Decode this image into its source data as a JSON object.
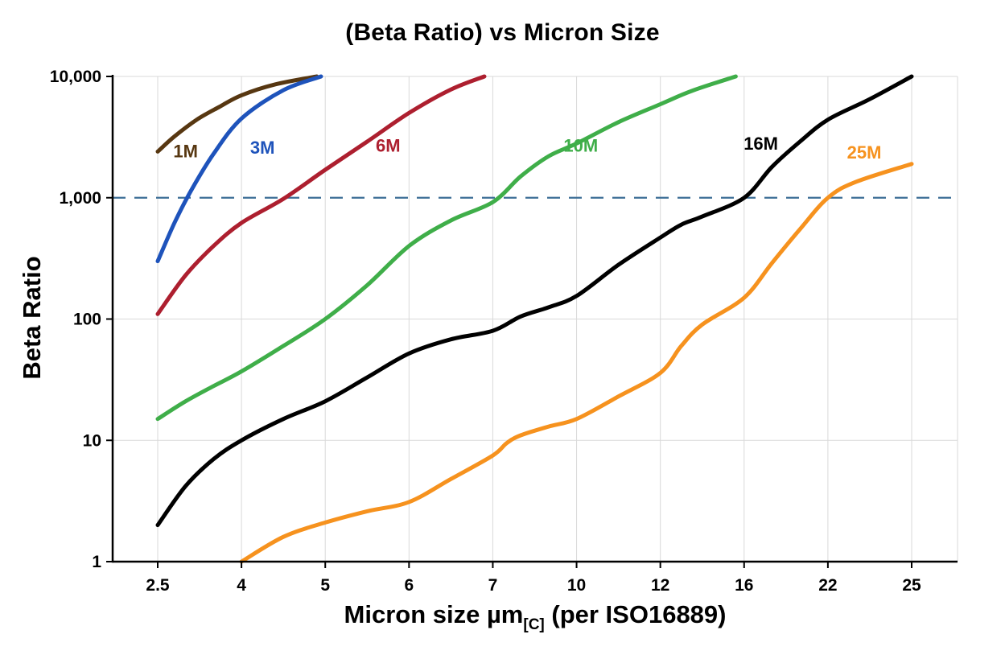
{
  "page": {
    "background": "#ffffff"
  },
  "chart_data": {
    "type": "line",
    "title": "(Beta Ratio) vs Micron Size",
    "ylabel": "Beta Ratio",
    "xlabel_prefix": "Micron size µm",
    "xlabel_subscript": "[C]",
    "xlabel_suffix": " (per ISO16889)",
    "x_scale": "categorical",
    "y_scale": "log",
    "ylim": [
      1,
      10000
    ],
    "categories": [
      2.5,
      4,
      5,
      6,
      7,
      10,
      12,
      16,
      22,
      25
    ],
    "x_tick_labels": [
      "2.5",
      "4",
      "5",
      "6",
      "7",
      "10",
      "12",
      "16",
      "22",
      "25"
    ],
    "y_ticks": [
      1,
      10,
      100,
      1000,
      10000
    ],
    "y_tick_labels": [
      "1",
      "10",
      "100",
      "1,000",
      "10,000"
    ],
    "grid": true,
    "grid_color": "#d9d9d9",
    "axis_color": "#000000",
    "reference_line": {
      "y": 1000,
      "style": "dashed",
      "color": "#3c6e96"
    },
    "legend_position": "inline-labels",
    "series": [
      {
        "name": "1M",
        "color": "#573711",
        "label_pos": [
          3.0,
          2150
        ],
        "points": [
          [
            2.5,
            2400
          ],
          [
            2.8,
            3200
          ],
          [
            3.2,
            4400
          ],
          [
            3.6,
            5600
          ],
          [
            4.0,
            7000
          ],
          [
            4.4,
            8600
          ],
          [
            4.9,
            10000
          ]
        ]
      },
      {
        "name": "3M",
        "color": "#1e53bb",
        "label_pos": [
          4.25,
          2300
        ],
        "points": [
          [
            2.5,
            300
          ],
          [
            2.8,
            620
          ],
          [
            3.1,
            1150
          ],
          [
            3.5,
            2300
          ],
          [
            4.0,
            4500
          ],
          [
            4.5,
            7700
          ],
          [
            4.95,
            10000
          ]
        ]
      },
      {
        "name": "6M",
        "color": "#ad1f2f",
        "label_pos": [
          5.75,
          2400
        ],
        "points": [
          [
            2.5,
            110
          ],
          [
            3.0,
            230
          ],
          [
            3.5,
            400
          ],
          [
            4.0,
            620
          ],
          [
            4.5,
            980
          ],
          [
            5.0,
            1700
          ],
          [
            5.5,
            2900
          ],
          [
            6.0,
            5000
          ],
          [
            6.5,
            7800
          ],
          [
            6.9,
            10000
          ]
        ]
      },
      {
        "name": "10M",
        "color": "#3fae49",
        "label_pos": [
          10.1,
          2400
        ],
        "points": [
          [
            2.5,
            15
          ],
          [
            3.0,
            21
          ],
          [
            3.5,
            28
          ],
          [
            4.0,
            37
          ],
          [
            4.5,
            60
          ],
          [
            5.0,
            100
          ],
          [
            5.5,
            190
          ],
          [
            6.0,
            400
          ],
          [
            6.5,
            650
          ],
          [
            7.0,
            920
          ],
          [
            8.0,
            1500
          ],
          [
            9.0,
            2200
          ],
          [
            10.0,
            2800
          ],
          [
            11.0,
            4200
          ],
          [
            12.0,
            5900
          ],
          [
            13.5,
            7600
          ],
          [
            15.6,
            10000
          ]
        ]
      },
      {
        "name": "16M",
        "color": "#000000",
        "label_pos": [
          17.2,
          2500
        ],
        "points": [
          [
            2.5,
            2
          ],
          [
            3.0,
            4.2
          ],
          [
            3.5,
            7
          ],
          [
            4.0,
            10
          ],
          [
            4.5,
            15
          ],
          [
            5.0,
            21
          ],
          [
            5.5,
            33
          ],
          [
            6.0,
            52
          ],
          [
            6.5,
            68
          ],
          [
            7.0,
            80
          ],
          [
            8.0,
            105
          ],
          [
            9.0,
            125
          ],
          [
            10.0,
            155
          ],
          [
            11.0,
            280
          ],
          [
            12.0,
            470
          ],
          [
            13.0,
            600
          ],
          [
            14.0,
            700
          ],
          [
            16.0,
            1000
          ],
          [
            18.0,
            1800
          ],
          [
            20.0,
            2900
          ],
          [
            22.0,
            4400
          ],
          [
            23.5,
            6500
          ],
          [
            25.0,
            10000
          ]
        ]
      },
      {
        "name": "25M",
        "color": "#f6921e",
        "label_pos": [
          23.3,
          2100
        ],
        "points": [
          [
            4.0,
            1
          ],
          [
            4.5,
            1.6
          ],
          [
            5.0,
            2.1
          ],
          [
            5.5,
            2.6
          ],
          [
            6.0,
            3.1
          ],
          [
            6.5,
            4.8
          ],
          [
            7.0,
            7.5
          ],
          [
            7.5,
            9.5
          ],
          [
            8.0,
            11
          ],
          [
            9.0,
            13
          ],
          [
            10.0,
            15
          ],
          [
            11.0,
            23
          ],
          [
            12.0,
            36
          ],
          [
            13.0,
            60
          ],
          [
            14.0,
            90
          ],
          [
            16.0,
            150
          ],
          [
            18.0,
            290
          ],
          [
            20.0,
            550
          ],
          [
            22.0,
            1000
          ],
          [
            23.0,
            1350
          ],
          [
            25.0,
            1900
          ]
        ]
      }
    ]
  }
}
